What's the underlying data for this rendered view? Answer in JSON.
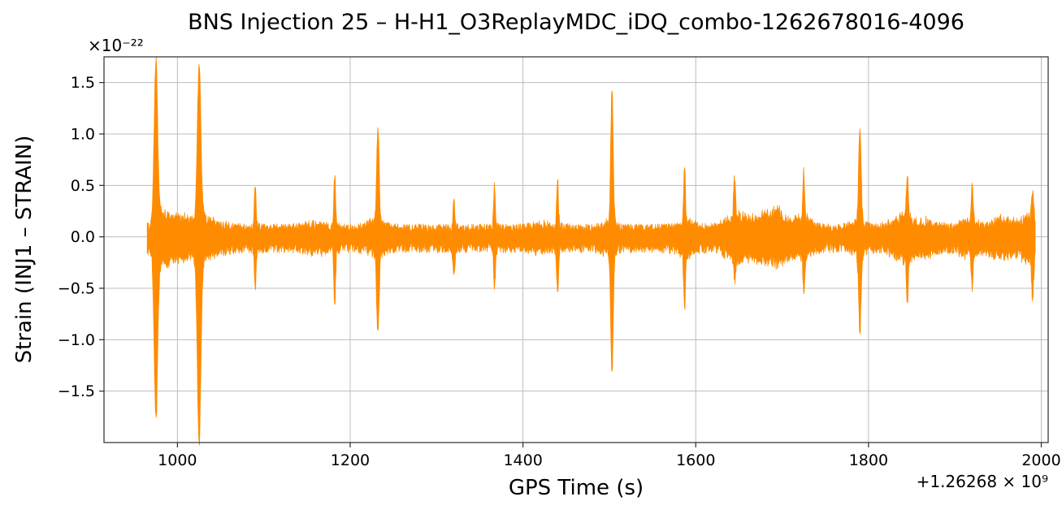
{
  "figure": {
    "background": "#ffffff"
  },
  "chart_data": {
    "type": "line",
    "title": "BNS Injection 25 – H-H1_O3ReplayMDC_iDQ_combo-1262678016-4096",
    "xlabel": "GPS Time (s)",
    "ylabel": "Strain (INJ1 – STRAIN)",
    "y_scale_label": "×10⁻²²",
    "x_offset_label": "+1.26268 × 10⁹",
    "legend": "none",
    "grid": true,
    "line_color": "#ff8c00",
    "grid_color": "#bcbcbc",
    "spine_color": "#2b2b2b",
    "text_color": "#000000",
    "xlim": [
      915,
      2008
    ],
    "ylim": [
      -2.0,
      1.75
    ],
    "xticks": [
      1000,
      1200,
      1400,
      1600,
      1800,
      2000
    ],
    "xtick_labels": [
      "1000",
      "1200",
      "1400",
      "1600",
      "1800",
      "2000"
    ],
    "yticks": [
      1.5,
      1.0,
      0.5,
      0.0,
      -0.5,
      -1.0,
      -1.5
    ],
    "ytick_labels": [
      "1.5",
      "1.0",
      "0.5",
      "0.0",
      "−0.5",
      "−1.0",
      "−1.5"
    ],
    "data_range": [
      965,
      1993
    ],
    "sample_step": 0.5,
    "noise_base_up": 0.085,
    "noise_base_down": 0.105,
    "spikes": [
      {
        "t": 975,
        "up": 1.55,
        "down": 1.6,
        "w": 2.0,
        "tail": 0.13,
        "tau": 25
      },
      {
        "t": 1025,
        "up": 1.5,
        "down": 1.8,
        "w": 2.0,
        "tail": 0.12,
        "tau": 18
      },
      {
        "t": 1090,
        "up": 0.42,
        "down": 0.42,
        "w": 1.0,
        "tail": 0.03,
        "tau": 5
      },
      {
        "t": 1182,
        "up": 0.5,
        "down": 0.55,
        "w": 1.0,
        "tail": 0.03,
        "tau": 5
      },
      {
        "t": 1232,
        "up": 0.93,
        "down": 0.78,
        "w": 1.4,
        "tail": 0.05,
        "tau": 7
      },
      {
        "t": 1320,
        "up": 0.27,
        "down": 0.3,
        "w": 1.0,
        "tail": 0.02,
        "tau": 4
      },
      {
        "t": 1367,
        "up": 0.4,
        "down": 0.4,
        "w": 1.0,
        "tail": 0.03,
        "tau": 5
      },
      {
        "t": 1440,
        "up": 0.46,
        "down": 0.45,
        "w": 1.0,
        "tail": 0.03,
        "tau": 5
      },
      {
        "t": 1503,
        "up": 1.31,
        "down": 1.21,
        "w": 1.4,
        "tail": 0.05,
        "tau": 6
      },
      {
        "t": 1587,
        "up": 0.52,
        "down": 0.53,
        "w": 1.0,
        "tail": 0.03,
        "tau": 5
      },
      {
        "t": 1645,
        "up": 0.4,
        "down": 0.22,
        "w": 1.0,
        "tail": 0.04,
        "tau": 6
      },
      {
        "t": 1725,
        "up": 0.44,
        "down": 0.35,
        "w": 1.0,
        "tail": 0.04,
        "tau": 6
      },
      {
        "t": 1790,
        "up": 0.93,
        "down": 0.75,
        "w": 1.4,
        "tail": 0.05,
        "tau": 6
      },
      {
        "t": 1845,
        "up": 0.45,
        "down": 0.45,
        "w": 1.0,
        "tail": 0.04,
        "tau": 6
      },
      {
        "t": 1920,
        "up": 0.38,
        "down": 0.35,
        "w": 1.0,
        "tail": 0.03,
        "tau": 5
      },
      {
        "t": 1990,
        "up": 0.28,
        "down": 0.43,
        "w": 1.2,
        "tail": 0.0,
        "tau": 1
      }
    ],
    "noise_bumps": [
      {
        "t": 1000,
        "amp": 0.07,
        "w": 20
      },
      {
        "t": 1160,
        "amp": 0.03,
        "w": 12
      },
      {
        "t": 1228,
        "amp": 0.05,
        "w": 8
      },
      {
        "t": 1420,
        "amp": 0.03,
        "w": 10
      },
      {
        "t": 1498,
        "amp": 0.04,
        "w": 6
      },
      {
        "t": 1590,
        "amp": 0.05,
        "w": 10
      },
      {
        "t": 1648,
        "amp": 0.1,
        "w": 12
      },
      {
        "t": 1675,
        "amp": 0.08,
        "w": 10
      },
      {
        "t": 1695,
        "amp": 0.13,
        "w": 9
      },
      {
        "t": 1722,
        "amp": 0.09,
        "w": 9
      },
      {
        "t": 1788,
        "amp": 0.05,
        "w": 8
      },
      {
        "t": 1838,
        "amp": 0.09,
        "w": 12
      },
      {
        "t": 1870,
        "amp": 0.05,
        "w": 10
      },
      {
        "t": 1915,
        "amp": 0.05,
        "w": 10
      },
      {
        "t": 1955,
        "amp": 0.07,
        "w": 12
      },
      {
        "t": 1984,
        "amp": 0.1,
        "w": 7
      }
    ]
  }
}
